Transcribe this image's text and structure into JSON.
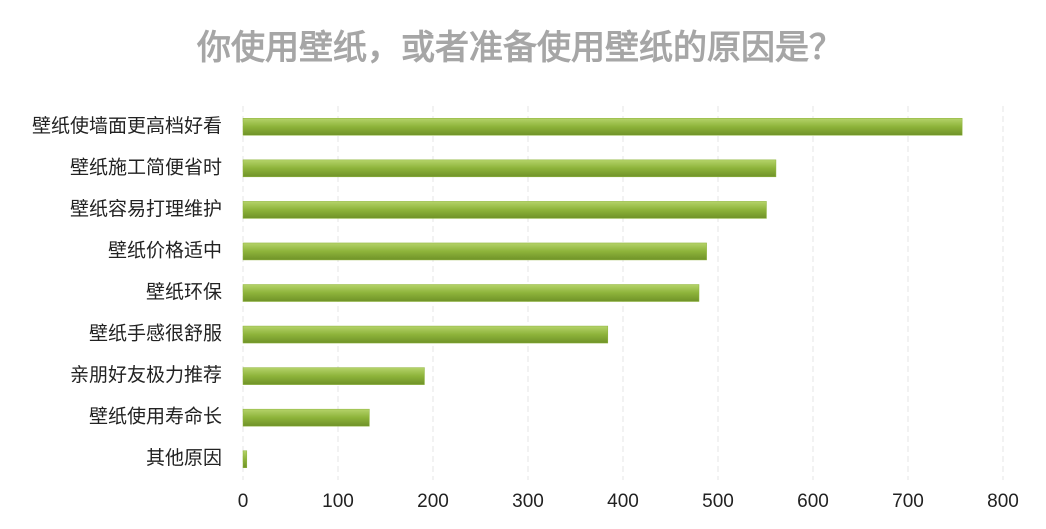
{
  "chart_data": {
    "type": "bar",
    "orientation": "horizontal",
    "title": "你使用壁纸，或者准备使用壁纸的原因是？",
    "categories": [
      "壁纸使墙面更高档好看",
      "壁纸施工简便省时",
      "壁纸容易打理维护",
      "壁纸价格适中",
      "壁纸环保",
      "壁纸手感很舒服",
      "亲朋好友极力推荐",
      "壁纸使用寿命长",
      "其他原因"
    ],
    "values": [
      757,
      561,
      551,
      488,
      480,
      384,
      191,
      133,
      4
    ],
    "color": "#8db33a",
    "xlim": [
      0,
      800
    ],
    "xticks": [
      0,
      100,
      200,
      300,
      400,
      500,
      600,
      700,
      800
    ],
    "grid": true
  }
}
